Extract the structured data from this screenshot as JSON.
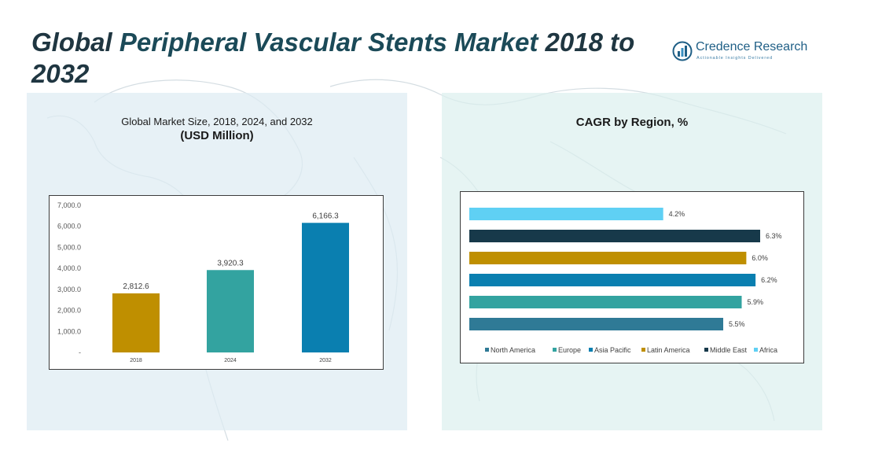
{
  "title": {
    "part1": "Global ",
    "part2": "Peripheral Vascular Stents Market",
    "part3": " 2018 to 2032"
  },
  "logo": {
    "name": "Credence Research",
    "tagline": "Actionable Insights Delivered"
  },
  "colors": {
    "y2018": "#bf8f00",
    "y2024": "#33a3a0",
    "y2032": "#0a7fb0",
    "north_america": "#2f7a96",
    "europe": "#33a3a0",
    "asia_pacific": "#0a7fb0",
    "latin_america": "#bf8f00",
    "middle_east": "#17394a",
    "africa": "#5fd0f4"
  },
  "chart_data": [
    {
      "type": "bar",
      "title": "Global Market Size, 2018, 2024, and 2032",
      "subtitle": "(USD Million)",
      "categories": [
        "2018",
        "2024",
        "2032"
      ],
      "values": [
        2812.6,
        3920.3,
        6166.3
      ],
      "value_labels": [
        "2,812.6",
        "3,920.3",
        "6,166.3"
      ],
      "ylim": [
        0,
        7000
      ],
      "yticks": [
        "-",
        "1,000.0",
        "2,000.0",
        "3,000.0",
        "4,000.0",
        "5,000.0",
        "6,000.0",
        "7,000.0"
      ],
      "grid": false,
      "legend": "none"
    },
    {
      "type": "bar",
      "orientation": "horizontal",
      "title": "CAGR by Region, %",
      "series": [
        {
          "name": "North America",
          "value": 5.5,
          "label": "5.5%"
        },
        {
          "name": "Europe",
          "value": 5.9,
          "label": "5.9%"
        },
        {
          "name": "Asia Pacific",
          "value": 6.2,
          "label": "6.2%"
        },
        {
          "name": "Latin America",
          "value": 6.0,
          "label": "6.0%"
        },
        {
          "name": "Middle East",
          "value": 6.3,
          "label": "6.3%"
        },
        {
          "name": "Africa",
          "value": 4.2,
          "label": "4.2%"
        }
      ],
      "grid": false,
      "legend": "bottom"
    }
  ]
}
